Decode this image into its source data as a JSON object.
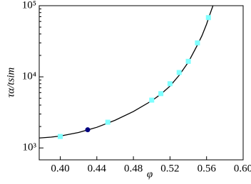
{
  "chart_data": {
    "type": "scatter",
    "xlabel": "φ",
    "ylabel": "τα/tsim",
    "xlim": [
      0.377,
      0.6
    ],
    "ylim": [
      680,
      100000
    ],
    "log_y": true,
    "xticks": [
      {
        "value": 0.4,
        "label": "0.40"
      },
      0.44,
      0.48,
      0.52,
      0.56,
      {
        "value": 0.6,
        "label": "0.60"
      }
    ],
    "yticks": [
      {
        "value": 1000,
        "label": "10³"
      },
      {
        "value": 10000,
        "label": "10⁴"
      },
      {
        "value": 100000,
        "label": "10⁵"
      }
    ],
    "series": [
      {
        "kind": "line",
        "color": "#000000",
        "x": [
          0.377,
          0.39,
          0.4,
          0.42,
          0.44,
          0.46,
          0.48,
          0.5,
          0.51,
          0.52,
          0.53,
          0.54,
          0.55,
          0.555,
          0.56,
          0.563,
          0.567
        ],
        "values": [
          1380,
          1420,
          1470,
          1650,
          1950,
          2450,
          3250,
          4600,
          5700,
          7400,
          10500,
          16000,
          28000,
          38000,
          55000,
          72000,
          100000
        ]
      },
      {
        "kind": "square",
        "color": "#7fffff",
        "x": [
          0.4,
          0.452,
          0.5,
          0.51,
          0.52,
          0.53,
          0.54,
          0.55,
          0.562
        ],
        "values": [
          1450,
          2300,
          4700,
          5800,
          8000,
          11500,
          16500,
          30000,
          68000
        ]
      },
      {
        "kind": "circle",
        "color": "#000080",
        "x": [
          0.43
        ],
        "values": [
          1800
        ]
      }
    ]
  }
}
